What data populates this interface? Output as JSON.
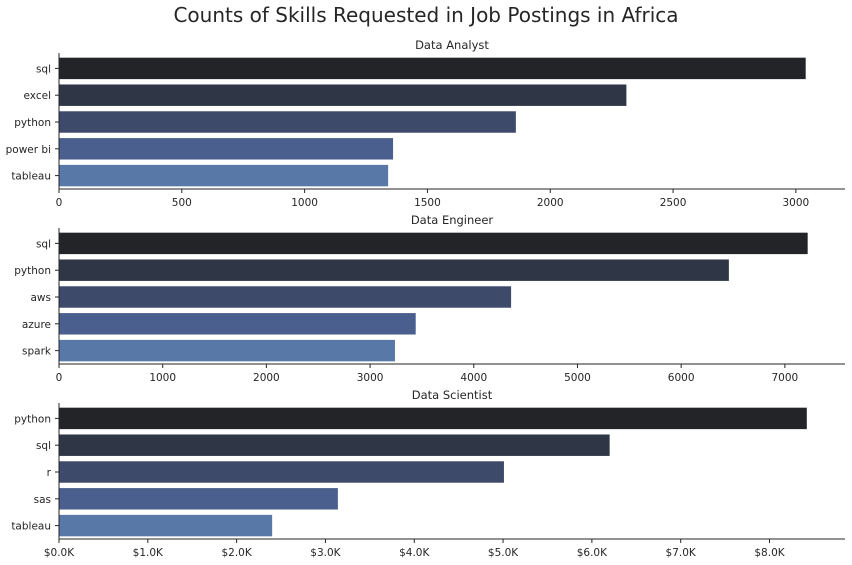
{
  "chart_title": "Counts of Skills Requested in Job Postings in Africa",
  "chart_data": [
    {
      "type": "bar",
      "orientation": "horizontal",
      "title": "Data Analyst",
      "categories": [
        "sql",
        "excel",
        "python",
        "power bi",
        "tableau"
      ],
      "values": [
        3040,
        2310,
        1860,
        1360,
        1340
      ],
      "xlim": [
        0,
        3200
      ],
      "xticks": [
        0,
        500,
        1000,
        1500,
        2000,
        2500,
        3000
      ],
      "xtick_labels": [
        "0",
        "500",
        "1000",
        "1500",
        "2000",
        "2500",
        "3000"
      ],
      "xlabel": "",
      "ylabel": ""
    },
    {
      "type": "bar",
      "orientation": "horizontal",
      "title": "Data Engineer",
      "categories": [
        "sql",
        "python",
        "aws",
        "azure",
        "spark"
      ],
      "values": [
        7220,
        6460,
        4360,
        3440,
        3240
      ],
      "xlim": [
        0,
        7580
      ],
      "xticks": [
        0,
        1000,
        2000,
        3000,
        4000,
        5000,
        6000,
        7000
      ],
      "xtick_labels": [
        "0",
        "1000",
        "2000",
        "3000",
        "4000",
        "5000",
        "6000",
        "7000"
      ],
      "xlabel": "",
      "ylabel": ""
    },
    {
      "type": "bar",
      "orientation": "horizontal",
      "title": "Data Scientist",
      "categories": [
        "python",
        "sql",
        "r",
        "sas",
        "tableau"
      ],
      "values": [
        8420,
        6200,
        5010,
        3140,
        2400
      ],
      "xlim": [
        0,
        8850
      ],
      "xticks": [
        0,
        1000,
        2000,
        3000,
        4000,
        5000,
        6000,
        7000,
        8000
      ],
      "xtick_labels": [
        "$0.0K",
        "$1.0K",
        "$2.0K",
        "$3.0K",
        "$4.0K",
        "$5.0K",
        "$6.0K",
        "$7.0K",
        "$8.0K"
      ],
      "xlabel": "",
      "ylabel": ""
    }
  ],
  "colors": {
    "bar_palette": [
      "#232427",
      "#2f3646",
      "#3d4a6a",
      "#4a5f8d",
      "#5878a8"
    ],
    "text": "#262626",
    "axis": "#262626"
  },
  "grid": false,
  "legend": "none"
}
